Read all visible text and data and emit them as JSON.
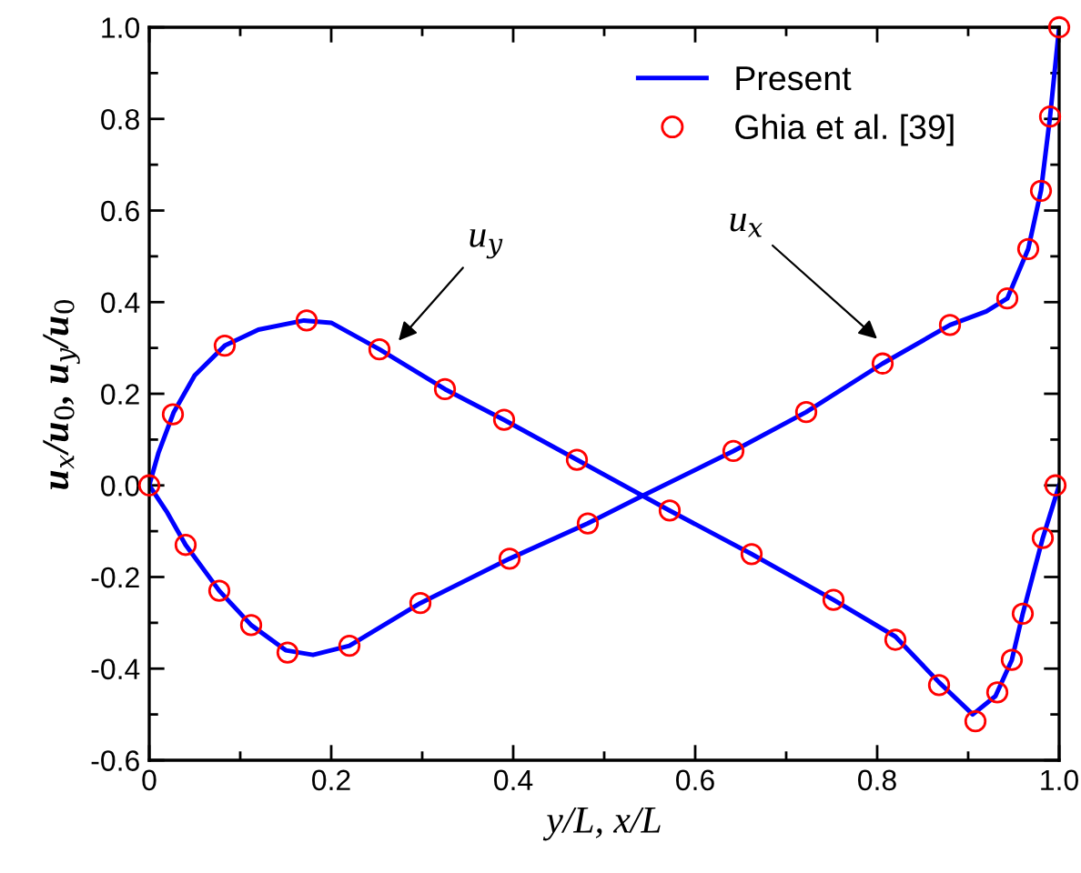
{
  "chart_data": {
    "type": "line",
    "xlabel": "y/L, x/L",
    "ylabel": "u$_{x}$/u$_{0}$, u$_{y}$/u$_{0}$",
    "xlim": [
      0,
      1
    ],
    "ylim": [
      -0.6,
      1
    ],
    "xticks": [
      0,
      {
        "value": 0.2,
        "label": "0.2"
      },
      {
        "value": 0.4,
        "label": "0.4"
      },
      {
        "value": 0.6,
        "label": "0.6"
      },
      {
        "value": 0.8,
        "label": "0.8"
      },
      {
        "value": 1,
        "label": "1.0"
      }
    ],
    "yticks": [
      -0.6,
      -0.4,
      -0.2,
      {
        "value": 0,
        "label": "0.0"
      },
      0.2,
      0.4,
      0.6,
      0.8,
      {
        "value": 1,
        "label": "1.0"
      }
    ],
    "grid": false,
    "legend": "top right",
    "series": [
      {
        "name": "Present",
        "color": "#0000ff",
        "marker": "none",
        "line_style": "solid",
        "x": [
          0,
          0.02,
          0.04,
          0.077,
          0.112,
          0.15,
          0.18,
          0.22,
          0.298,
          0.396,
          0.482,
          0.54,
          0.642,
          0.722,
          0.806,
          0.88,
          0.92,
          0.943,
          0.966,
          0.98,
          0.99,
          1.0
        ],
        "values": [
          0,
          -0.06,
          -0.13,
          -0.23,
          -0.305,
          -0.36,
          -0.37,
          -0.35,
          -0.257,
          -0.16,
          -0.083,
          -0.025,
          0.075,
          0.16,
          0.266,
          0.35,
          0.38,
          0.408,
          0.516,
          0.643,
          0.805,
          1.0
        ]
      },
      {
        "color": "#0000ff",
        "marker": "none",
        "line_style": "solid",
        "x": [
          0,
          0.01,
          0.027,
          0.05,
          0.083,
          0.12,
          0.17,
          0.2,
          0.253,
          0.325,
          0.39,
          0.47,
          0.572,
          0.662,
          0.752,
          0.82,
          0.868,
          0.905,
          0.93,
          0.948,
          0.96,
          0.982,
          1.0
        ],
        "values": [
          0,
          0.07,
          0.16,
          0.24,
          0.305,
          0.34,
          0.36,
          0.355,
          0.297,
          0.21,
          0.143,
          0.056,
          -0.055,
          -0.15,
          -0.25,
          -0.33,
          -0.43,
          -0.5,
          -0.46,
          -0.381,
          -0.28,
          -0.115,
          0.0
        ]
      },
      {
        "name": "Ghia et al. [39]",
        "type": "scatter",
        "color": "#ff0000",
        "marker": "circle",
        "x": [
          0,
          0.04,
          0.077,
          0.112,
          0.152,
          0.22,
          0.298,
          0.396,
          0.482,
          0.642,
          0.722,
          0.806,
          0.88,
          0.943,
          0.966,
          0.98,
          0.99,
          1.0
        ],
        "values": [
          0,
          -0.13,
          -0.23,
          -0.305,
          -0.365,
          -0.35,
          -0.257,
          -0.16,
          -0.083,
          0.075,
          0.16,
          0.266,
          0.35,
          0.408,
          0.516,
          0.643,
          0.805,
          1.0
        ]
      },
      {
        "type": "scatter",
        "color": "#ff0000",
        "marker": "circle",
        "x": [
          0.026,
          0.083,
          0.173,
          0.253,
          0.325,
          0.39,
          0.47,
          0.572,
          0.662,
          0.752,
          0.82,
          0.868,
          0.908,
          0.932,
          0.948,
          0.96,
          0.982,
          0.996
        ],
        "values": [
          0.155,
          0.305,
          0.36,
          0.297,
          0.21,
          0.143,
          0.056,
          -0.055,
          -0.15,
          -0.25,
          -0.337,
          -0.436,
          -0.515,
          -0.452,
          -0.381,
          -0.28,
          -0.115,
          0.0
        ]
      }
    ],
    "annotations": [
      "u$_{y}$",
      "u$_{x}$"
    ]
  }
}
